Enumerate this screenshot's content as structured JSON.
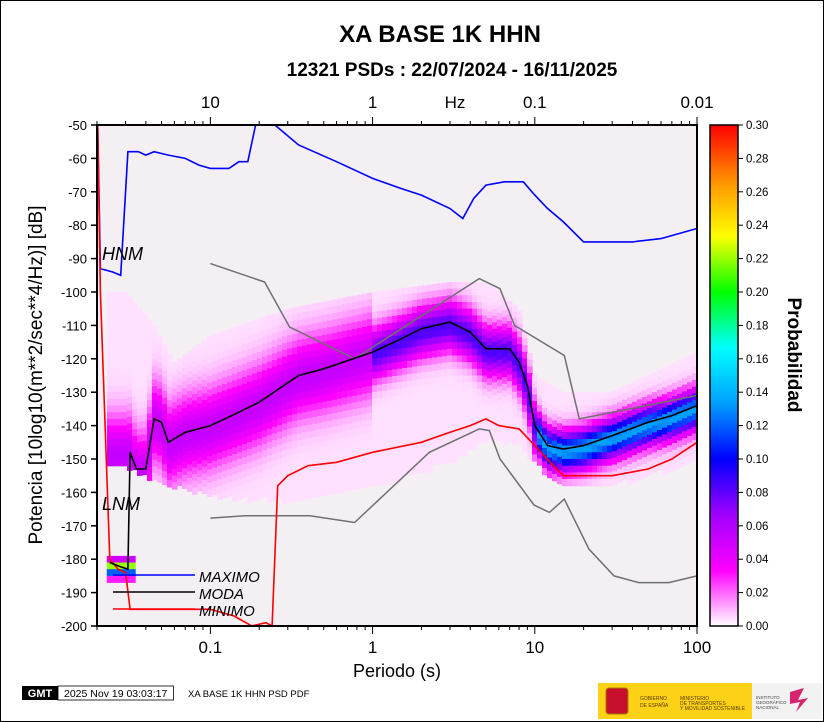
{
  "chart_data": {
    "type": "heatmap",
    "title": "XA BASE 1K HHN",
    "subtitle": "12321 PSDs : 22/07/2024 - 16/11/2025",
    "xlabel": "Periodo (s)",
    "ylabel": "Potencia [10log10(m**2/sec**4/Hz)] [dB]",
    "top_axis_label": "Hz",
    "x_scale": "log",
    "xlim": [
      0.02,
      100
    ],
    "ylim": [
      -200,
      -50
    ],
    "x_ticks": [
      {
        "v": 0.1,
        "label": "0.1"
      },
      {
        "v": 1,
        "label": "1"
      },
      {
        "v": 10,
        "label": "10"
      },
      {
        "v": 100,
        "label": "100"
      }
    ],
    "top_ticks": [
      {
        "v": 0.1,
        "label": "10"
      },
      {
        "v": 1,
        "label": "1"
      },
      {
        "v": 10,
        "label": "0.1"
      },
      {
        "v": 100,
        "label": "0.01"
      }
    ],
    "y_ticks": [
      -50,
      -60,
      -70,
      -80,
      -90,
      -100,
      -110,
      -120,
      -130,
      -140,
      -150,
      -160,
      -170,
      -180,
      -190,
      -200
    ],
    "grid": false,
    "colorbar": {
      "label": "Probabilidad",
      "range": [
        0,
        0.3
      ],
      "ticks": [
        "0.00",
        "0.02",
        "0.04",
        "0.06",
        "0.08",
        "0.10",
        "0.12",
        "0.14",
        "0.16",
        "0.18",
        "0.20",
        "0.22",
        "0.24",
        "0.26",
        "0.28",
        "0.30"
      ],
      "colors": [
        "#ffffff",
        "#ff00ff",
        "#a000ff",
        "#0000ff",
        "#00a0ff",
        "#00ffff",
        "#00ff00",
        "#ffff00",
        "#ff9000",
        "#ff0000"
      ]
    },
    "pdf_extent": [
      [
        0.025,
        -100,
        -152
      ],
      [
        0.03,
        -100,
        -152
      ],
      [
        0.045,
        -110,
        -155
      ],
      [
        0.06,
        -121,
        -157
      ],
      [
        0.1,
        -113,
        -160
      ],
      [
        0.3,
        -105,
        -162
      ],
      [
        1,
        -100,
        -158
      ],
      [
        3,
        -97,
        -150
      ],
      [
        5,
        -97,
        -143
      ],
      [
        8,
        -105,
        -145
      ],
      [
        10,
        -125,
        -150
      ],
      [
        15,
        -130,
        -158
      ],
      [
        30,
        -130,
        -157
      ],
      [
        100,
        -118,
        -150
      ]
    ],
    "series": [
      {
        "name": "MAXIMO",
        "color": "#0000ff",
        "points": [
          [
            0.0202,
            -50
          ],
          [
            0.021,
            -93
          ],
          [
            0.025,
            -94
          ],
          [
            0.028,
            -95
          ],
          [
            0.031,
            -58
          ],
          [
            0.036,
            -58
          ],
          [
            0.04,
            -59
          ],
          [
            0.045,
            -58
          ],
          [
            0.055,
            -59
          ],
          [
            0.07,
            -60
          ],
          [
            0.085,
            -62
          ],
          [
            0.1,
            -63
          ],
          [
            0.13,
            -63
          ],
          [
            0.15,
            -61
          ],
          [
            0.17,
            -61
          ],
          [
            0.19,
            -50
          ],
          [
            0.25,
            -50
          ],
          [
            0.35,
            -56
          ],
          [
            0.6,
            -61
          ],
          [
            1,
            -66
          ],
          [
            1.5,
            -69
          ],
          [
            2,
            -71
          ],
          [
            3,
            -75
          ],
          [
            3.6,
            -78
          ],
          [
            4.2,
            -72
          ],
          [
            5,
            -68
          ],
          [
            6.5,
            -67
          ],
          [
            8.5,
            -67
          ],
          [
            10,
            -71
          ],
          [
            12,
            -75
          ],
          [
            15,
            -79
          ],
          [
            20,
            -85
          ],
          [
            40,
            -85
          ],
          [
            60,
            -84
          ],
          [
            100,
            -81
          ]
        ]
      },
      {
        "name": "MODA",
        "color": "#000000",
        "points": [
          [
            0.024,
            -181
          ],
          [
            0.027,
            -182
          ],
          [
            0.031,
            -183
          ],
          [
            0.032,
            -148
          ],
          [
            0.035,
            -153
          ],
          [
            0.04,
            -153
          ],
          [
            0.045,
            -138
          ],
          [
            0.05,
            -139
          ],
          [
            0.055,
            -145
          ],
          [
            0.07,
            -142
          ],
          [
            0.1,
            -140
          ],
          [
            0.15,
            -136
          ],
          [
            0.2,
            -133
          ],
          [
            0.35,
            -125
          ],
          [
            0.5,
            -123
          ],
          [
            1,
            -118
          ],
          [
            1.5,
            -114
          ],
          [
            2,
            -111
          ],
          [
            3,
            -109
          ],
          [
            4,
            -112
          ],
          [
            5,
            -117
          ],
          [
            7,
            -117
          ],
          [
            8,
            -121
          ],
          [
            9,
            -128
          ],
          [
            10,
            -140
          ],
          [
            12,
            -146
          ],
          [
            15,
            -147
          ],
          [
            20,
            -146
          ],
          [
            30,
            -143
          ],
          [
            50,
            -139
          ],
          [
            70,
            -137
          ],
          [
            100,
            -134
          ]
        ]
      },
      {
        "name": "MINIMO",
        "color": "#ff0000",
        "points": [
          [
            0.0202,
            -50
          ],
          [
            0.021,
            -100
          ],
          [
            0.024,
            -180
          ],
          [
            0.027,
            -183
          ],
          [
            0.03,
            -184
          ],
          [
            0.032,
            -195
          ],
          [
            0.04,
            -195
          ],
          [
            0.06,
            -195
          ],
          [
            0.1,
            -195
          ],
          [
            0.14,
            -197
          ],
          [
            0.18,
            -200
          ],
          [
            0.22,
            -199
          ],
          [
            0.24,
            -200
          ],
          [
            0.26,
            -158
          ],
          [
            0.3,
            -155
          ],
          [
            0.4,
            -152
          ],
          [
            0.6,
            -151
          ],
          [
            1,
            -148
          ],
          [
            2,
            -145
          ],
          [
            3,
            -142
          ],
          [
            4,
            -140
          ],
          [
            5,
            -138
          ],
          [
            6,
            -140
          ],
          [
            8,
            -141
          ],
          [
            10,
            -146
          ],
          [
            13,
            -152
          ],
          [
            15,
            -155
          ],
          [
            20,
            -155
          ],
          [
            30,
            -155
          ],
          [
            50,
            -153
          ],
          [
            70,
            -150
          ],
          [
            100,
            -145
          ]
        ]
      },
      {
        "label": "HNM",
        "color": "#707070",
        "points": [
          [
            0.1,
            -91.5
          ],
          [
            0.216,
            -97
          ],
          [
            0.308,
            -110.5
          ],
          [
            0.775,
            -120
          ],
          [
            4.55,
            -96
          ],
          [
            6.1,
            -99
          ],
          [
            7.5,
            -110
          ],
          [
            15.2,
            -119
          ],
          [
            18.8,
            -138
          ],
          [
            100,
            -131
          ]
        ]
      },
      {
        "label": "LNM",
        "color": "#707070",
        "points": [
          [
            0.1,
            -167.7
          ],
          [
            0.163,
            -167
          ],
          [
            0.41,
            -167
          ],
          [
            0.775,
            -169
          ],
          [
            2.24,
            -148
          ],
          [
            4.55,
            -141
          ],
          [
            5.25,
            -141.5
          ],
          [
            6.1,
            -150
          ],
          [
            9.9,
            -163.8
          ],
          [
            12.3,
            -166
          ],
          [
            15.2,
            -162
          ],
          [
            21.6,
            -177
          ],
          [
            30.8,
            -185
          ],
          [
            43.8,
            -187
          ],
          [
            67,
            -187
          ],
          [
            100,
            -185
          ]
        ]
      }
    ],
    "legend": [
      "MAXIMO",
      "MODA",
      "MINIMO"
    ],
    "legend_placement": "bottom-left"
  },
  "footer": {
    "gmt_logo": "GMT",
    "timestamp": "2025 Nov 19 03:03:17",
    "caption": "XA BASE 1K HHN PSD PDF",
    "logo_gov": "GOBIERNO DE ESPAÑA",
    "logo_ministry": "MINISTERIO DE TRANSPORTES Y MOVILIDAD SOSTENIBLE",
    "logo_ign": "INSTITUTO GEOGRÁFICO NACIONAL"
  }
}
